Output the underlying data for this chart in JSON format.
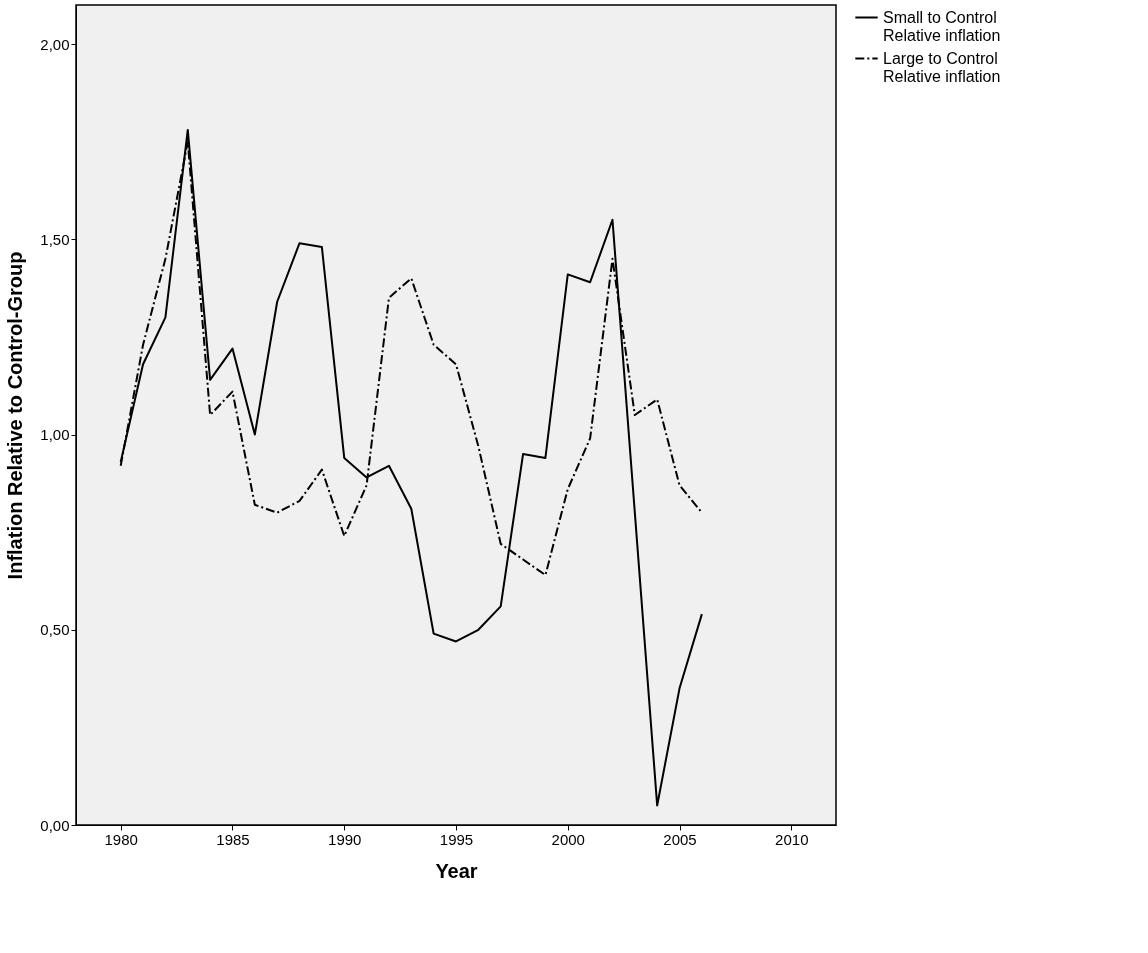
{
  "chart_data": {
    "type": "line",
    "xlabel": "Year",
    "ylabel": "Inflation Relative to Control-Group",
    "x": [
      1980,
      1981,
      1982,
      1983,
      1984,
      1985,
      1986,
      1987,
      1988,
      1989,
      1990,
      1991,
      1992,
      1993,
      1994,
      1995,
      1996,
      1997,
      1998,
      1999,
      2000,
      2001,
      2002,
      2003,
      2004,
      2005,
      2006
    ],
    "series": [
      {
        "name": "Small to Control Relative inflation",
        "color": "#000000",
        "line_style": "solid",
        "values": [
          0.93,
          1.18,
          1.3,
          1.78,
          1.14,
          1.22,
          1.0,
          1.34,
          1.49,
          1.48,
          0.94,
          0.89,
          0.92,
          0.81,
          0.49,
          0.47,
          0.5,
          0.56,
          0.95,
          0.94,
          1.41,
          1.39,
          1.55,
          0.8,
          0.05,
          0.35,
          0.54
        ]
      },
      {
        "name": "Large to Control Relative inflation",
        "color": "#000000",
        "line_style": "dashdot",
        "values": [
          0.92,
          1.23,
          1.45,
          1.75,
          1.05,
          1.11,
          0.82,
          0.8,
          0.83,
          0.91,
          0.74,
          0.87,
          1.35,
          1.4,
          1.23,
          1.18,
          0.97,
          0.72,
          0.68,
          0.64,
          0.86,
          0.99,
          1.45,
          1.05,
          1.09,
          0.87,
          0.8
        ]
      }
    ],
    "xlim": [
      1978,
      2012
    ],
    "xticks": [
      1980,
      1985,
      1990,
      1995,
      2000,
      2005,
      2010
    ],
    "ylim": [
      0,
      2.1
    ],
    "yticks": [
      {
        "value": 0,
        "label": "0,00"
      },
      {
        "value": 0.5,
        "label": "0,50"
      },
      {
        "value": 1,
        "label": "1,00"
      },
      {
        "value": 1.5,
        "label": "1,50"
      },
      {
        "value": 2,
        "label": "2,00"
      }
    ],
    "grid": false,
    "legend": "top right",
    "marker": "none"
  }
}
